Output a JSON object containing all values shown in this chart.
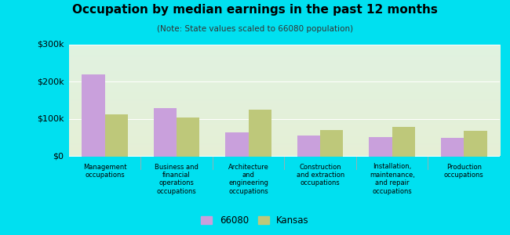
{
  "title": "Occupation by median earnings in the past 12 months",
  "subtitle": "(Note: State values scaled to 66080 population)",
  "categories": [
    "Management\noccupations",
    "Business and\nfinancial\noperations\noccupations",
    "Architecture\nand\nengineering\noccupations",
    "Construction\nand extraction\noccupations",
    "Installation,\nmaintenance,\nand repair\noccupations",
    "Production\noccupations"
  ],
  "values_66080": [
    220000,
    130000,
    65000,
    55000,
    52000,
    50000
  ],
  "values_kansas": [
    112000,
    105000,
    125000,
    70000,
    80000,
    68000
  ],
  "color_66080": "#c9a0dc",
  "color_kansas": "#bec87a",
  "ylim": [
    0,
    300000
  ],
  "yticks": [
    0,
    100000,
    200000,
    300000
  ],
  "ytick_labels": [
    "$0",
    "$100k",
    "$200k",
    "$300k"
  ],
  "grad_top": "#d8ede0",
  "grad_bottom": "#e8f0d8",
  "outer_background": "#00e0f0",
  "legend_labels": [
    "66080",
    "Kansas"
  ],
  "bar_width": 0.32
}
